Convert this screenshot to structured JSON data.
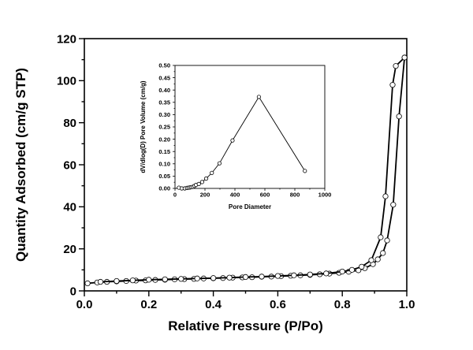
{
  "chart_data": [
    {
      "type": "line",
      "xlabel": "Relative Pressure (P/Po)",
      "ylabel": "Quantity Adsorbed (cm/g STP)",
      "xlim": [
        0,
        1.0
      ],
      "ylim": [
        0,
        120
      ],
      "xticks": [
        "0.0",
        "0.2",
        "0.4",
        "0.6",
        "0.8",
        "1.0"
      ],
      "yticks": [
        "0",
        "20",
        "40",
        "60",
        "80",
        "100",
        "120"
      ],
      "grid": false,
      "marker": "open-circle",
      "series": [
        {
          "x": [
            0.01,
            0.04,
            0.07,
            0.1,
            0.13,
            0.16,
            0.19,
            0.22,
            0.25,
            0.28,
            0.31,
            0.34,
            0.37,
            0.4,
            0.43,
            0.46,
            0.49,
            0.52,
            0.55,
            0.58,
            0.61,
            0.64,
            0.67,
            0.7,
            0.73,
            0.76,
            0.79,
            0.82,
            0.85,
            0.87,
            0.895,
            0.91,
            0.926,
            0.939,
            0.958,
            0.976,
            0.993
          ],
          "y": [
            3.6,
            4.0,
            4.3,
            4.5,
            4.7,
            4.9,
            5.0,
            5.2,
            5.3,
            5.5,
            5.6,
            5.7,
            5.9,
            6.0,
            6.1,
            6.3,
            6.4,
            6.5,
            6.7,
            6.8,
            7.0,
            7.2,
            7.4,
            7.6,
            7.9,
            8.2,
            8.6,
            9.1,
            9.8,
            10.8,
            12.7,
            15,
            18,
            24,
            41,
            83,
            111
          ]
        },
        {
          "x": [
            0.993,
            0.966,
            0.956,
            0.934,
            0.919,
            0.89,
            0.86,
            0.83,
            0.8,
            0.75,
            0.7,
            0.65,
            0.6,
            0.55,
            0.5,
            0.45,
            0.4,
            0.35,
            0.3,
            0.25,
            0.2,
            0.15,
            0.1,
            0.05
          ],
          "y": [
            111,
            107,
            98,
            45,
            25.5,
            14.6,
            11.5,
            10.0,
            9.2,
            8.3,
            7.8,
            7.4,
            7.1,
            6.8,
            6.6,
            6.3,
            6.1,
            5.9,
            5.7,
            5.5,
            5.3,
            5.0,
            4.7,
            4.3
          ]
        }
      ]
    },
    {
      "type": "line",
      "xlabel": "Pore Diameter",
      "ylabel": "dV/dlog(D) Pore Volume (cm/g)",
      "xlim": [
        0,
        1000
      ],
      "ylim": [
        0,
        0.5
      ],
      "xticks": [
        "0",
        "200",
        "400",
        "600",
        "800",
        "1000"
      ],
      "yticks": [
        "0.00",
        "0.05",
        "0.10",
        "0.15",
        "0.20",
        "0.25",
        "0.30",
        "0.35",
        "0.40",
        "0.45",
        "0.50"
      ],
      "grid": false,
      "marker": "open-circle",
      "series": [
        {
          "x": [
            26,
            45,
            65,
            80,
            90,
            100,
            110,
            120,
            130,
            140,
            159,
            181,
            208,
            246,
            297,
            384,
            560,
            867
          ],
          "y": [
            0.003,
            0.0,
            0.0,
            0.002,
            0.003,
            0.004,
            0.005,
            0.007,
            0.01,
            0.014,
            0.018,
            0.026,
            0.04,
            0.063,
            0.102,
            0.195,
            0.372,
            0.071
          ]
        }
      ]
    }
  ]
}
